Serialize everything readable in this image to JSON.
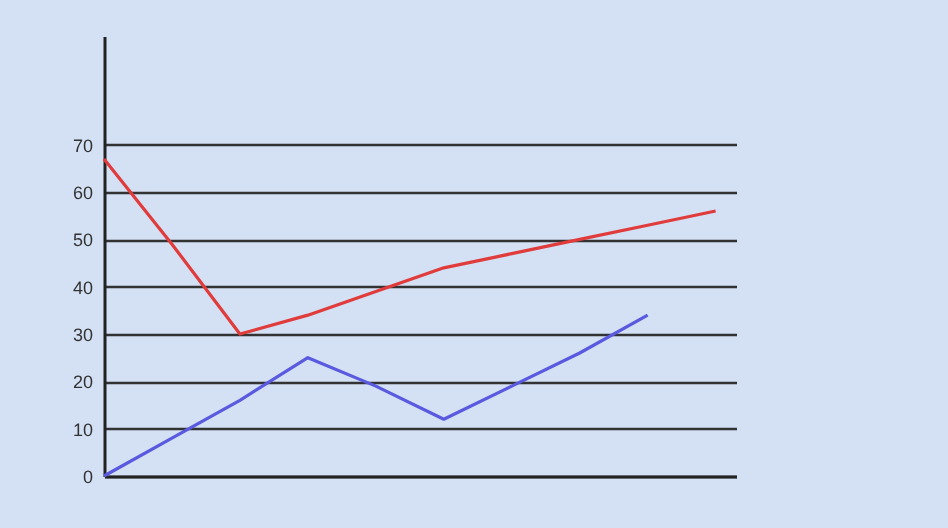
{
  "chart_data": {
    "type": "line",
    "categories": [
      null,
      null,
      null,
      null,
      null,
      null,
      null,
      null,
      null,
      null
    ],
    "series": [
      {
        "color": "#e03c3c",
        "values": [
          67,
          49,
          30,
          34,
          39,
          44,
          47,
          50,
          53,
          56
        ]
      },
      {
        "color": "#5a5ae0",
        "values": [
          0,
          8,
          16,
          25,
          19,
          12,
          19,
          26,
          34,
          null
        ]
      }
    ],
    "ylim": [
      0,
      93
    ],
    "yticks": [
      0,
      10,
      20,
      30,
      40,
      50,
      60,
      70
    ],
    "grid": "y",
    "tick_labels": "y",
    "marker": "none",
    "line_style": "solid"
  }
}
